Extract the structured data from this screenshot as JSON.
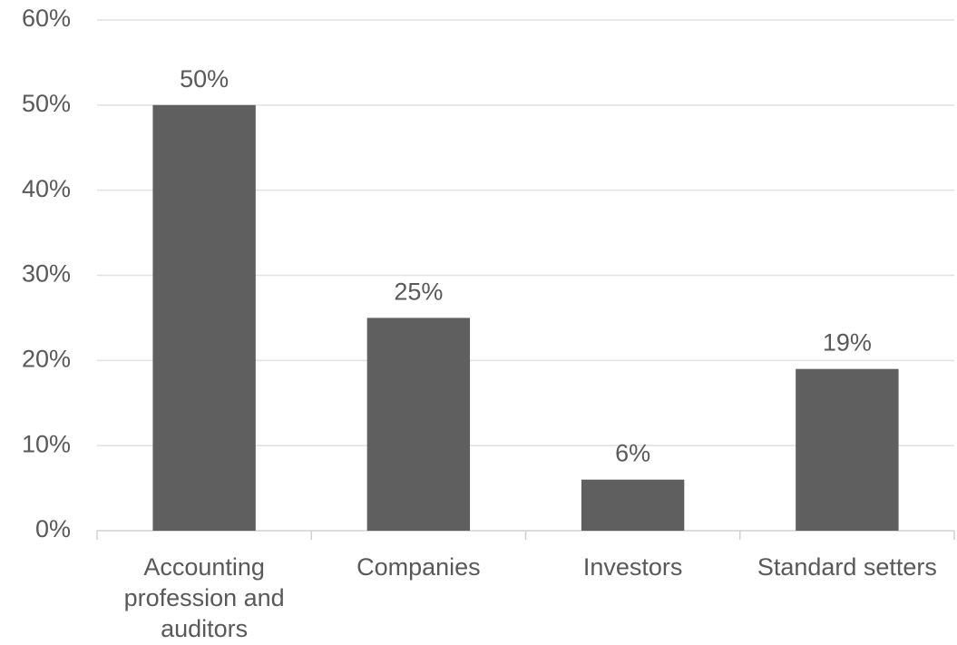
{
  "chart_data": {
    "type": "bar",
    "title": "",
    "xlabel": "",
    "ylabel": "",
    "categories": [
      [
        "Accounting",
        "profession and",
        "auditors"
      ],
      [
        "Companies"
      ],
      [
        "Investors"
      ],
      [
        "Standard setters"
      ]
    ],
    "values": [
      50,
      25,
      6,
      19
    ],
    "value_labels": [
      "50%",
      "25%",
      "6%",
      "19%"
    ],
    "ylim": [
      0,
      60
    ],
    "y_ticks": [
      0,
      10,
      20,
      30,
      40,
      50,
      60
    ],
    "y_tick_labels": [
      "0%",
      "10%",
      "20%",
      "30%",
      "40%",
      "50%",
      "60%"
    ],
    "grid": true,
    "legend": "none",
    "bar_color": "#5f5f5f"
  }
}
